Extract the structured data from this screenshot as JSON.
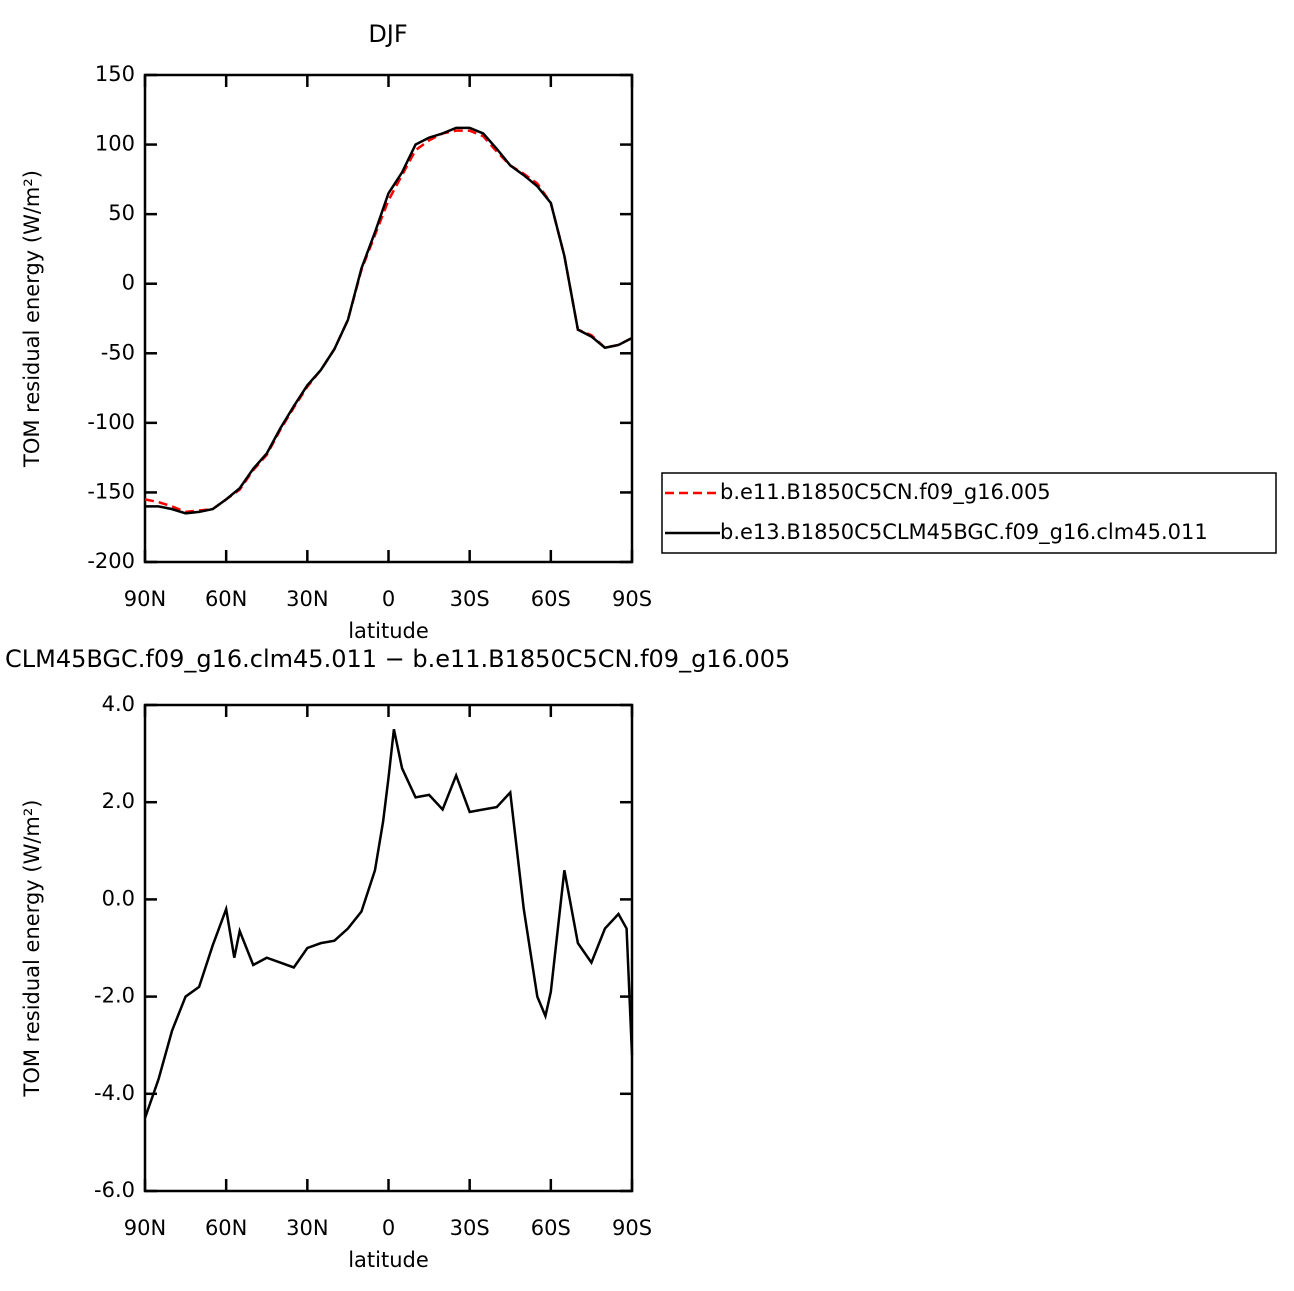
{
  "chart_data": [
    {
      "type": "line",
      "title": "DJF",
      "xlabel": "latitude",
      "ylabel": "TOM residual energy (W/m²)",
      "x": [
        90,
        85,
        80,
        75,
        70,
        65,
        60,
        55,
        50,
        45,
        40,
        35,
        30,
        25,
        20,
        15,
        10,
        5,
        0,
        -5,
        -10,
        -15,
        -20,
        -25,
        -30,
        -35,
        -40,
        -45,
        -50,
        -55,
        -60,
        -65,
        -70,
        -75,
        -80,
        -85,
        -90
      ],
      "series": [
        {
          "name": "b.e11.B1850C5CN.f09_g16.005",
          "color": "#ff0000",
          "line_style": "dashed",
          "values": [
            -155,
            -157,
            -160,
            -164,
            -163,
            -162,
            -155,
            -148,
            -134,
            -123,
            -105,
            -89,
            -74,
            -62,
            -47,
            -26,
            10,
            35,
            60,
            78,
            96,
            103,
            108,
            110,
            110,
            106,
            95,
            85,
            79,
            72,
            58,
            20,
            -33,
            -37,
            -46,
            -44,
            -39
          ]
        },
        {
          "name": "b.e13.B1850C5CLM45BGC.f09_g16.clm45.011",
          "color": "#000000",
          "line_style": "solid",
          "values": [
            -160,
            -160,
            -162,
            -165,
            -164,
            -162,
            -155,
            -147,
            -133,
            -122,
            -104,
            -88,
            -73,
            -62,
            -47,
            -26,
            11,
            37,
            65,
            80,
            100,
            105,
            108,
            112,
            112,
            108,
            97,
            85,
            78,
            70,
            58,
            20,
            -33,
            -38,
            -46,
            -44,
            -39
          ]
        }
      ],
      "xlim": [
        90,
        -90
      ],
      "xticks": [
        {
          "value": 90,
          "label": "90N"
        },
        {
          "value": 60,
          "label": "60N"
        },
        {
          "value": 30,
          "label": "30N"
        },
        0,
        {
          "value": -30,
          "label": "30S"
        },
        {
          "value": -60,
          "label": "60S"
        },
        {
          "value": -90,
          "label": "90S"
        }
      ],
      "ylim": [
        -200,
        150
      ],
      "yticks": [
        150,
        100,
        50,
        0,
        -50,
        -100,
        -150,
        -200
      ],
      "legend": "right"
    },
    {
      "type": "line",
      "title": "CLM45BGC.f09_g16.clm45.011 − b.e11.B1850C5CN.f09_g16.005",
      "xlabel": "latitude",
      "ylabel": "TOM residual energy (W/m²)",
      "x": [
        90,
        85,
        80,
        75,
        70,
        65,
        60,
        57,
        55,
        50,
        45,
        40,
        35,
        30,
        25,
        20,
        15,
        10,
        5,
        2,
        0,
        -2,
        -5,
        -10,
        -15,
        -20,
        -25,
        -30,
        -35,
        -40,
        -45,
        -50,
        -55,
        -58,
        -60,
        -65,
        -70,
        -75,
        -80,
        -85,
        -88,
        -90
      ],
      "series": [
        {
          "color": "#000000",
          "line_style": "solid",
          "values": [
            -4.5,
            -3.7,
            -2.7,
            -2.0,
            -1.8,
            -0.95,
            -0.2,
            -1.2,
            -0.65,
            -1.35,
            -1.2,
            -1.3,
            -1.4,
            -1.0,
            -0.9,
            -0.85,
            -0.6,
            -0.25,
            0.6,
            1.6,
            2.5,
            3.5,
            2.7,
            2.1,
            2.15,
            1.85,
            2.55,
            1.8,
            1.85,
            1.9,
            2.2,
            -0.2,
            -2.0,
            -2.4,
            -1.9,
            0.6,
            -0.9,
            -1.3,
            -0.6,
            -0.3,
            -0.6,
            -3.2
          ]
        }
      ],
      "xlim": [
        90,
        -90
      ],
      "xticks": [
        {
          "value": 90,
          "label": "90N"
        },
        {
          "value": 60,
          "label": "60N"
        },
        {
          "value": 30,
          "label": "30N"
        },
        0,
        {
          "value": -30,
          "label": "30S"
        },
        {
          "value": -60,
          "label": "60S"
        },
        {
          "value": -90,
          "label": "90S"
        }
      ],
      "ylim": [
        -6,
        4
      ],
      "yticks": [
        {
          "value": 4,
          "label": "4.0"
        },
        {
          "value": 2,
          "label": "2.0"
        },
        {
          "value": 0,
          "label": "0.0"
        },
        {
          "value": -2,
          "label": "-2.0"
        },
        {
          "value": -4,
          "label": "-4.0"
        },
        {
          "value": -6,
          "label": "-6.0"
        }
      ]
    }
  ]
}
